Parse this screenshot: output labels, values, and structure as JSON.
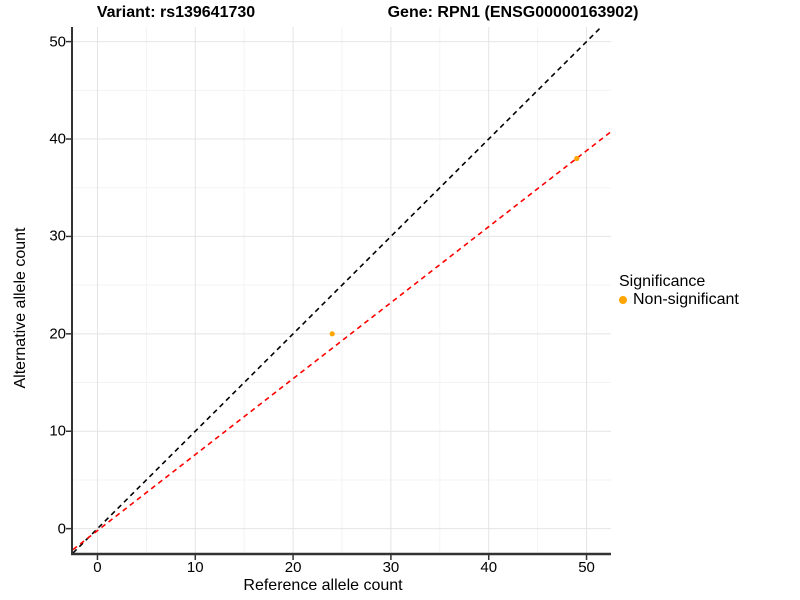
{
  "chart_data": {
    "type": "scatter",
    "title_left": "Variant: rs139641730",
    "title_right": "Gene: RPN1 (ENSG00000163902)",
    "xlabel": "Reference allele count",
    "ylabel": "Alternative allele count",
    "xlim": [
      -2.5,
      52.5
    ],
    "ylim": [
      -2.5,
      51.5
    ],
    "x_ticks": [
      0,
      10,
      20,
      30,
      40,
      50
    ],
    "y_ticks": [
      0,
      10,
      20,
      30,
      40,
      50
    ],
    "x_minor": [
      5,
      15,
      25,
      35,
      45
    ],
    "y_minor": [
      5,
      15,
      25,
      35,
      45
    ],
    "grid": true,
    "background": "#ffffff",
    "major_grid_color": "#e4e4e4",
    "minor_grid_color": "#f3f3f3",
    "axis_line_color": "#333333",
    "series": [
      {
        "name": "Non-significant",
        "color": "#FFA500",
        "points": [
          [
            24,
            20
          ],
          [
            49,
            38
          ]
        ]
      }
    ],
    "lines": [
      {
        "name": "identity",
        "color": "#000000",
        "style": "dashed",
        "slope": 1,
        "intercept": 0
      },
      {
        "name": "fit",
        "color": "#FF0000",
        "style": "dashed",
        "slope": 0.78,
        "intercept": -0.2
      }
    ],
    "legend": {
      "title": "Significance",
      "position": "right",
      "items": [
        {
          "label": "Non-significant",
          "color": "#FFA500"
        }
      ]
    }
  }
}
